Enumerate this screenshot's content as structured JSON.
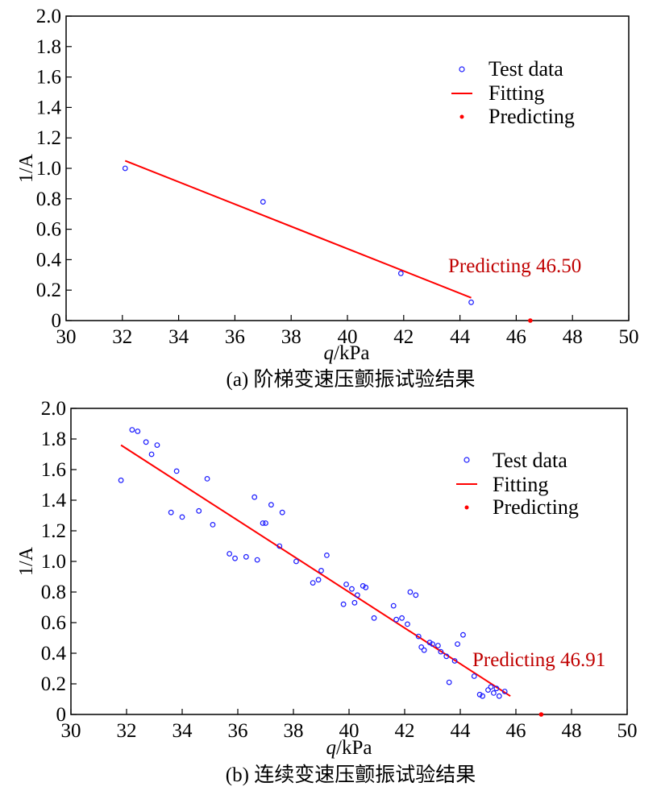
{
  "chart_data": [
    {
      "type": "scatter",
      "caption": "(a)  阶梯变速压颤振试验结果",
      "xlabel_var": "q",
      "xlabel_unit": "/kPa",
      "ylabel": "1/A",
      "xlim": [
        30,
        50
      ],
      "ylim": [
        0,
        2.0
      ],
      "xticks": [
        "30",
        "32",
        "34",
        "36",
        "38",
        "40",
        "42",
        "44",
        "46",
        "48",
        "50"
      ],
      "yticks": [
        "0",
        "0.2",
        "0.4",
        "0.6",
        "0.8",
        "1.0",
        "1.2",
        "1.4",
        "1.6",
        "1.8",
        "2.0"
      ],
      "legend": {
        "position": "top-right",
        "test_label": "Test data",
        "fit_label": "Fitting",
        "pred_label": "Predicting"
      },
      "test_points": [
        [
          32.1,
          1.0
        ],
        [
          37.0,
          0.78
        ],
        [
          41.9,
          0.31
        ],
        [
          44.4,
          0.12
        ]
      ],
      "fit_line": [
        [
          32.1,
          1.05
        ],
        [
          44.4,
          0.15
        ]
      ],
      "predict_point": [
        46.5,
        0.0
      ],
      "predict_annotation": "Predicting  46.50",
      "colors": {
        "test": "#1a1aff",
        "fit": "#ff0000",
        "pred": "#ff0000",
        "annotation": "#c00000"
      }
    },
    {
      "type": "scatter",
      "caption": "(b)  连续变速压颤振试验结果",
      "xlabel_var": "q",
      "xlabel_unit": "/kPa",
      "ylabel": "1/A",
      "xlim": [
        30,
        50
      ],
      "ylim": [
        0,
        2.0
      ],
      "xticks": [
        "30",
        "32",
        "34",
        "36",
        "38",
        "40",
        "42",
        "44",
        "46",
        "48",
        "50"
      ],
      "yticks": [
        "0",
        "0.2",
        "0.4",
        "0.6",
        "0.8",
        "1.0",
        "1.2",
        "1.4",
        "1.6",
        "1.8",
        "2.0"
      ],
      "legend": {
        "position": "top-right",
        "test_label": "Test data",
        "fit_label": "Fitting",
        "pred_label": "Predicting"
      },
      "test_points": [
        [
          31.8,
          1.53
        ],
        [
          32.2,
          1.86
        ],
        [
          32.4,
          1.85
        ],
        [
          32.7,
          1.78
        ],
        [
          32.9,
          1.7
        ],
        [
          33.1,
          1.76
        ],
        [
          33.6,
          1.32
        ],
        [
          33.8,
          1.59
        ],
        [
          34.0,
          1.29
        ],
        [
          34.6,
          1.33
        ],
        [
          34.9,
          1.54
        ],
        [
          35.1,
          1.24
        ],
        [
          35.7,
          1.05
        ],
        [
          35.9,
          1.02
        ],
        [
          36.3,
          1.03
        ],
        [
          36.6,
          1.42
        ],
        [
          36.7,
          1.01
        ],
        [
          36.9,
          1.25
        ],
        [
          37.0,
          1.25
        ],
        [
          37.2,
          1.37
        ],
        [
          37.5,
          1.1
        ],
        [
          37.6,
          1.32
        ],
        [
          38.1,
          1.0
        ],
        [
          38.7,
          0.86
        ],
        [
          38.9,
          0.88
        ],
        [
          39.0,
          0.94
        ],
        [
          39.2,
          1.04
        ],
        [
          39.8,
          0.72
        ],
        [
          39.9,
          0.85
        ],
        [
          40.1,
          0.82
        ],
        [
          40.2,
          0.73
        ],
        [
          40.3,
          0.78
        ],
        [
          40.5,
          0.84
        ],
        [
          40.6,
          0.83
        ],
        [
          40.9,
          0.63
        ],
        [
          41.6,
          0.71
        ],
        [
          41.7,
          0.62
        ],
        [
          41.9,
          0.63
        ],
        [
          42.1,
          0.59
        ],
        [
          42.2,
          0.8
        ],
        [
          42.4,
          0.78
        ],
        [
          42.5,
          0.51
        ],
        [
          42.6,
          0.44
        ],
        [
          42.7,
          0.42
        ],
        [
          42.9,
          0.47
        ],
        [
          43.0,
          0.46
        ],
        [
          43.2,
          0.45
        ],
        [
          43.3,
          0.41
        ],
        [
          43.5,
          0.38
        ],
        [
          43.6,
          0.21
        ],
        [
          43.8,
          0.35
        ],
        [
          43.9,
          0.46
        ],
        [
          44.1,
          0.52
        ],
        [
          44.5,
          0.25
        ],
        [
          44.7,
          0.13
        ],
        [
          44.8,
          0.12
        ],
        [
          45.0,
          0.16
        ],
        [
          45.1,
          0.18
        ],
        [
          45.2,
          0.14
        ],
        [
          45.3,
          0.17
        ],
        [
          45.4,
          0.12
        ],
        [
          45.6,
          0.15
        ]
      ],
      "fit_line": [
        [
          31.8,
          1.76
        ],
        [
          45.8,
          0.12
        ]
      ],
      "predict_point": [
        46.91,
        0.0
      ],
      "predict_annotation": "Predicting  46.91",
      "colors": {
        "test": "#1a1aff",
        "fit": "#ff0000",
        "pred": "#ff0000",
        "annotation": "#c00000"
      }
    }
  ]
}
